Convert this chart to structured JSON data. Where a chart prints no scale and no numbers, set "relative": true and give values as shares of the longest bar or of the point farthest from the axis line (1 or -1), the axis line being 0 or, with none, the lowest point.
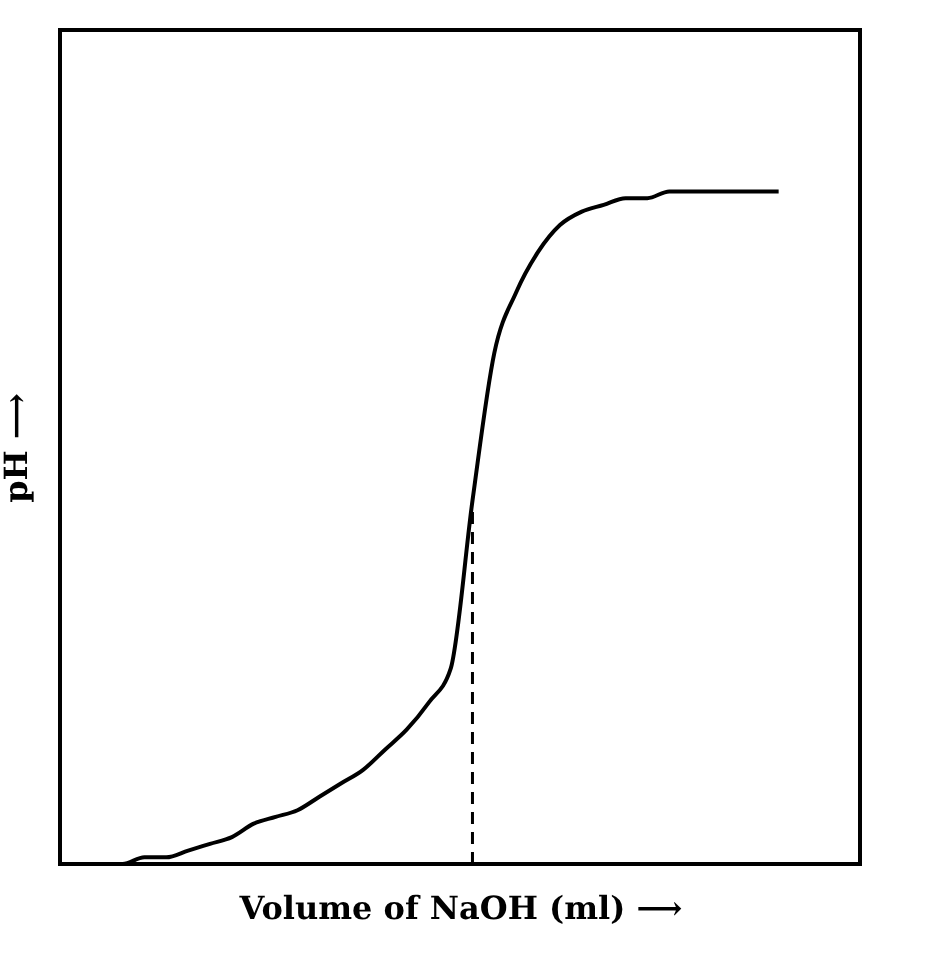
{
  "chart_data": {
    "type": "line",
    "relative": true,
    "xlabel": "Volume of NaOH (ml) ⟶",
    "ylabel": "pH ⟶",
    "categories": [
      null,
      null,
      null,
      null,
      null,
      null,
      null,
      null,
      null,
      null,
      null,
      null,
      null,
      null,
      null,
      null,
      null,
      null,
      null,
      null,
      null,
      null,
      null,
      null,
      null,
      null,
      null,
      null,
      null,
      null,
      null,
      null
    ],
    "series": [
      {
        "color": "#000000",
        "values": [
          0,
          0,
          0.01,
          0.01,
          0.02,
          0.03,
          0.04,
          0.06,
          0.07,
          0.08,
          0.1,
          0.12,
          0.14,
          0.17,
          0.2,
          0.24,
          0.29,
          0.54,
          0.76,
          0.85,
          0.91,
          0.95,
          0.97,
          0.98,
          0.99,
          0.99,
          1,
          1,
          1,
          1,
          1,
          1
        ]
      }
    ],
    "marker": "none",
    "line_style": "solid",
    "grid": false,
    "tick_labels": false
  }
}
